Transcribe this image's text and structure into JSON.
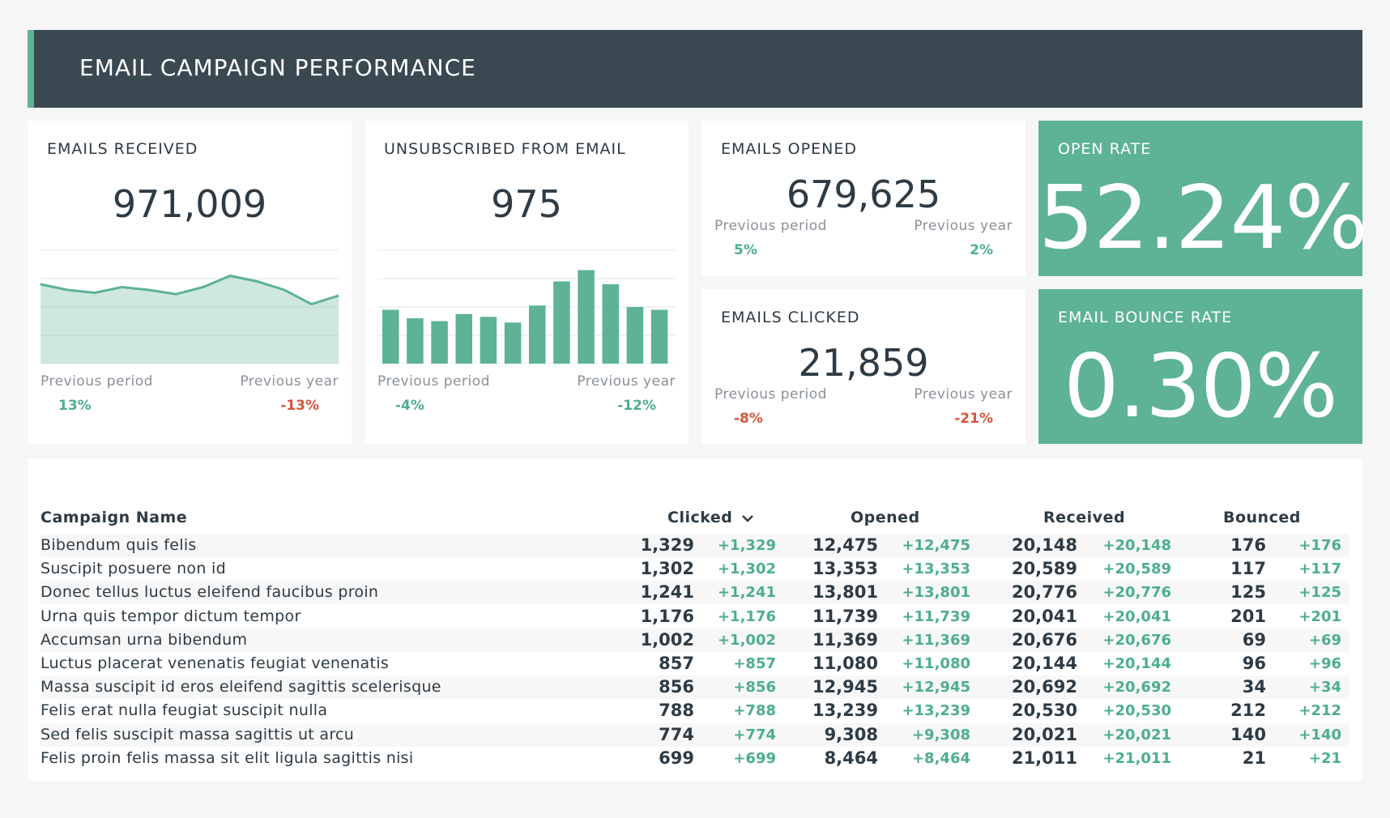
{
  "header": {
    "title": "EMAIL CAMPAIGN PERFORMANCE"
  },
  "colors": {
    "accent": "#5db394",
    "header_bg": "#3a4852",
    "positive": "#4daf8a",
    "negative": "#d9533b"
  },
  "cards": {
    "received": {
      "label": "EMAILS RECEIVED",
      "value": "971,009",
      "prev_period_label": "Previous period",
      "prev_year_label": "Previous year",
      "prev_period": "13%",
      "prev_year": "-13%"
    },
    "unsubscribed": {
      "label": "UNSUBSCRIBED FROM EMAIL",
      "value": "975",
      "prev_period_label": "Previous period",
      "prev_year_label": "Previous year",
      "prev_period": "-4%",
      "prev_year": "-12%"
    },
    "opened": {
      "label": "EMAILS OPENED",
      "value": "679,625",
      "prev_period_label": "Previous period",
      "prev_year_label": "Previous year",
      "prev_period": "5%",
      "prev_year": "2%"
    },
    "clicked": {
      "label": "EMAILS CLICKED",
      "value": "21,859",
      "prev_period_label": "Previous period",
      "prev_year_label": "Previous year",
      "prev_period": "-8%",
      "prev_year": "-21%"
    },
    "open_rate": {
      "label": "OPEN RATE",
      "value": "52.24%"
    },
    "bounce_rate": {
      "label": "EMAIL BOUNCE RATE",
      "value": "0.30%"
    }
  },
  "chart_data": [
    {
      "type": "area",
      "values": [
        28,
        26,
        25,
        27,
        26,
        24.5,
        27,
        31,
        29,
        26,
        21,
        24
      ],
      "ylim": [
        0,
        40
      ]
    },
    {
      "type": "bar",
      "values": [
        19,
        16,
        15,
        17.5,
        16.5,
        14.5,
        20.5,
        29,
        33,
        28,
        20,
        19
      ],
      "ylim": [
        0,
        40
      ]
    }
  ],
  "table": {
    "headers": {
      "name": "Campaign Name",
      "clicked": "Clicked",
      "opened": "Opened",
      "received": "Received",
      "bounced": "Bounced"
    },
    "sort_icon": "chevron-down-icon",
    "rows": [
      {
        "name": "Bibendum quis felis",
        "clicked": "1,329",
        "clicked_d": "+1,329",
        "opened": "12,475",
        "opened_d": "+12,475",
        "received": "20,148",
        "received_d": "+20,148",
        "bounced": "176",
        "bounced_d": "+176"
      },
      {
        "name": "Suscipit posuere non id",
        "clicked": "1,302",
        "clicked_d": "+1,302",
        "opened": "13,353",
        "opened_d": "+13,353",
        "received": "20,589",
        "received_d": "+20,589",
        "bounced": "117",
        "bounced_d": "+117"
      },
      {
        "name": "Donec tellus luctus eleifend faucibus proin",
        "clicked": "1,241",
        "clicked_d": "+1,241",
        "opened": "13,801",
        "opened_d": "+13,801",
        "received": "20,776",
        "received_d": "+20,776",
        "bounced": "125",
        "bounced_d": "+125"
      },
      {
        "name": "Urna quis tempor dictum tempor",
        "clicked": "1,176",
        "clicked_d": "+1,176",
        "opened": "11,739",
        "opened_d": "+11,739",
        "received": "20,041",
        "received_d": "+20,041",
        "bounced": "201",
        "bounced_d": "+201"
      },
      {
        "name": "Accumsan urna bibendum",
        "clicked": "1,002",
        "clicked_d": "+1,002",
        "opened": "11,369",
        "opened_d": "+11,369",
        "received": "20,676",
        "received_d": "+20,676",
        "bounced": "69",
        "bounced_d": "+69"
      },
      {
        "name": "Luctus placerat venenatis feugiat venenatis",
        "clicked": "857",
        "clicked_d": "+857",
        "opened": "11,080",
        "opened_d": "+11,080",
        "received": "20,144",
        "received_d": "+20,144",
        "bounced": "96",
        "bounced_d": "+96"
      },
      {
        "name": "Massa suscipit id eros eleifend sagittis scelerisque",
        "clicked": "856",
        "clicked_d": "+856",
        "opened": "12,945",
        "opened_d": "+12,945",
        "received": "20,692",
        "received_d": "+20,692",
        "bounced": "34",
        "bounced_d": "+34"
      },
      {
        "name": "Felis erat nulla feugiat suscipit nulla",
        "clicked": "788",
        "clicked_d": "+788",
        "opened": "13,239",
        "opened_d": "+13,239",
        "received": "20,530",
        "received_d": "+20,530",
        "bounced": "212",
        "bounced_d": "+212"
      },
      {
        "name": "Sed felis suscipit massa sagittis ut arcu",
        "clicked": "774",
        "clicked_d": "+774",
        "opened": "9,308",
        "opened_d": "+9,308",
        "received": "20,021",
        "received_d": "+20,021",
        "bounced": "140",
        "bounced_d": "+140"
      },
      {
        "name": "Felis proin felis massa sit elit ligula sagittis nisi",
        "clicked": "699",
        "clicked_d": "+699",
        "opened": "8,464",
        "opened_d": "+8,464",
        "received": "21,011",
        "received_d": "+21,011",
        "bounced": "21",
        "bounced_d": "+21"
      }
    ]
  }
}
